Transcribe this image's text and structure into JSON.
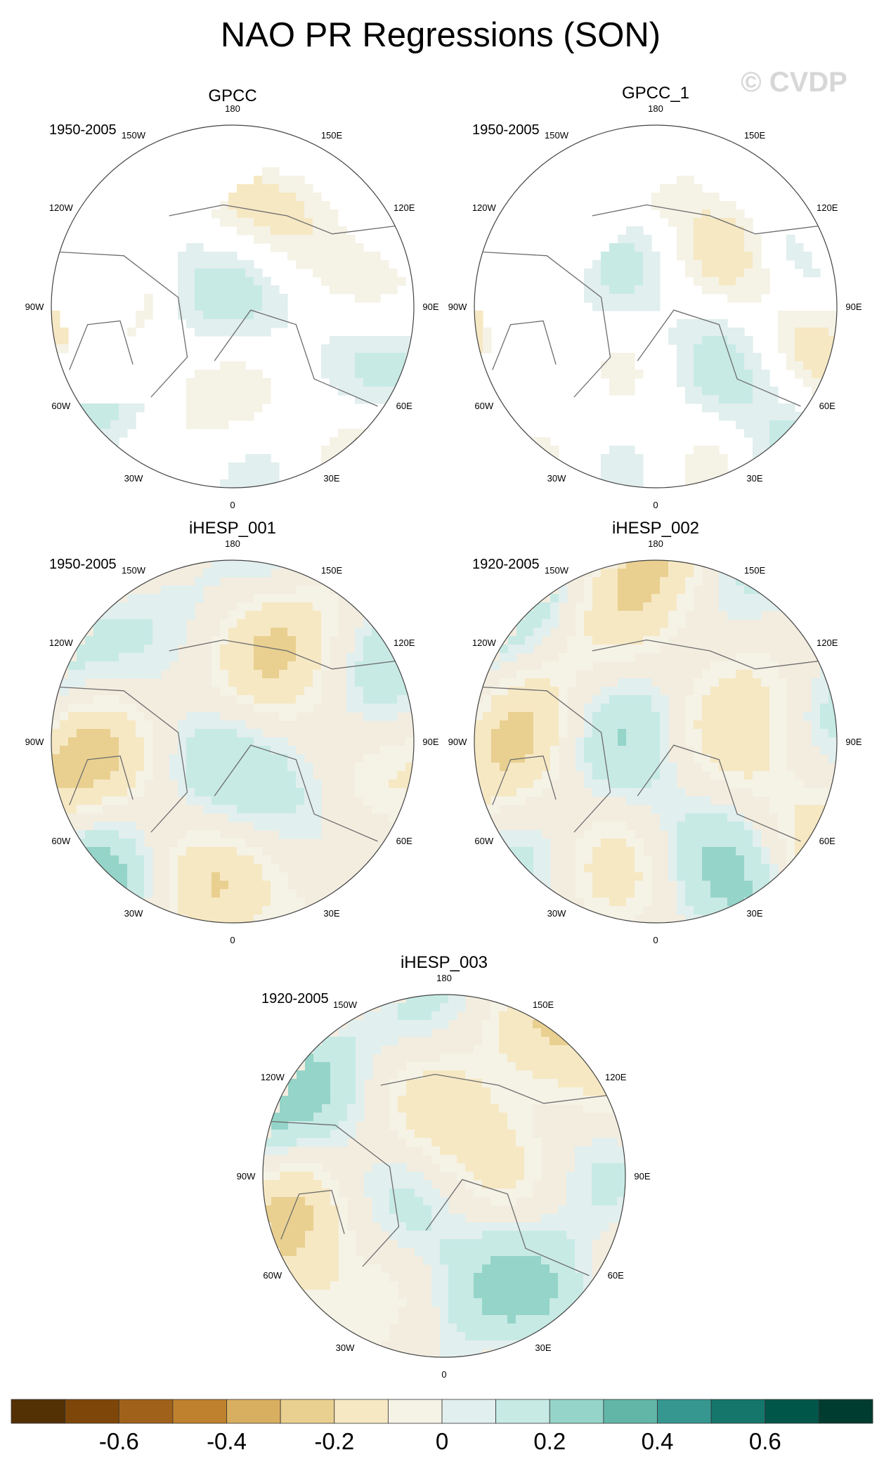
{
  "figure": {
    "title": "NAO PR Regressions (SON)",
    "watermark": "© CVDP"
  },
  "chart_data": {
    "type": "map",
    "projection": "north-polar-stereographic",
    "title": "NAO PR Regressions (SON)",
    "longitude_labels": [
      "180",
      "150E",
      "120E",
      "90E",
      "60E",
      "30E",
      "0",
      "30W",
      "60W",
      "90W",
      "120W",
      "150W"
    ],
    "panels": [
      {
        "name": "GPCC",
        "period": "1950-2005",
        "land_only": true
      },
      {
        "name": "GPCC_1",
        "period": "1950-2005",
        "land_only": true
      },
      {
        "name": "iHESP_001",
        "period": "1950-2005",
        "land_only": false
      },
      {
        "name": "iHESP_002",
        "period": "1920-2005",
        "land_only": false
      },
      {
        "name": "iHESP_003",
        "period": "1920-2005",
        "land_only": false
      }
    ],
    "colorbar": {
      "tick_labels": [
        "-0.6",
        "-0.4",
        "-0.2",
        "0",
        "0.2",
        "0.4",
        "0.6"
      ],
      "tick_values": [
        -0.6,
        -0.4,
        -0.2,
        0,
        0.2,
        0.4,
        0.6
      ],
      "levels": [
        -0.7,
        -0.6,
        -0.5,
        -0.4,
        -0.3,
        -0.2,
        -0.1,
        0,
        0.1,
        0.2,
        0.3,
        0.4,
        0.5,
        0.6,
        0.7
      ],
      "colors": [
        "#543005",
        "#7f4609",
        "#a0621a",
        "#bf812d",
        "#d8ae60",
        "#e9d090",
        "#f6e8c3",
        "#f5f2e6",
        "#e1efee",
        "#c7eae5",
        "#95d4c9",
        "#61b6a8",
        "#35978f",
        "#15766c",
        "#01564a",
        "#003c30"
      ]
    }
  }
}
